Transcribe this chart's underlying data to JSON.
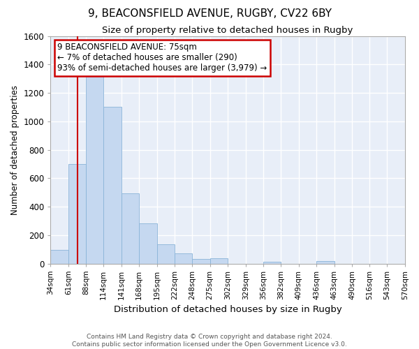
{
  "title_line1": "9, BEACONSFIELD AVENUE, RUGBY, CV22 6BY",
  "title_line2": "Size of property relative to detached houses in Rugby",
  "xlabel": "Distribution of detached houses by size in Rugby",
  "ylabel": "Number of detached properties",
  "bar_color": "#c5d8f0",
  "bar_edge_color": "#8ab4d8",
  "background_color": "#e8eef8",
  "grid_color": "#ffffff",
  "annotation_box_color": "#cc0000",
  "annotation_line1": "9 BEACONSFIELD AVENUE: 75sqm",
  "annotation_line2": "← 7% of detached houses are smaller (290)",
  "annotation_line3": "93% of semi-detached houses are larger (3,979) →",
  "property_line_x": 75,
  "property_line_color": "#cc0000",
  "bins": [
    34,
    61,
    88,
    114,
    141,
    168,
    195,
    222,
    248,
    275,
    302,
    329,
    356,
    382,
    409,
    436,
    463,
    490,
    516,
    543,
    570
  ],
  "bar_heights": [
    95,
    700,
    1330,
    1100,
    495,
    280,
    135,
    70,
    32,
    35,
    0,
    0,
    12,
    0,
    0,
    15,
    0,
    0,
    0,
    0
  ],
  "tick_labels": [
    "34sqm",
    "61sqm",
    "88sqm",
    "114sqm",
    "141sqm",
    "168sqm",
    "195sqm",
    "222sqm",
    "248sqm",
    "275sqm",
    "302sqm",
    "329sqm",
    "356sqm",
    "382sqm",
    "409sqm",
    "436sqm",
    "463sqm",
    "490sqm",
    "516sqm",
    "543sqm",
    "570sqm"
  ],
  "ylim": [
    0,
    1600
  ],
  "yticks": [
    0,
    200,
    400,
    600,
    800,
    1000,
    1200,
    1400,
    1600
  ],
  "footer_text": "Contains HM Land Registry data © Crown copyright and database right 2024.\nContains public sector information licensed under the Open Government Licence v3.0."
}
